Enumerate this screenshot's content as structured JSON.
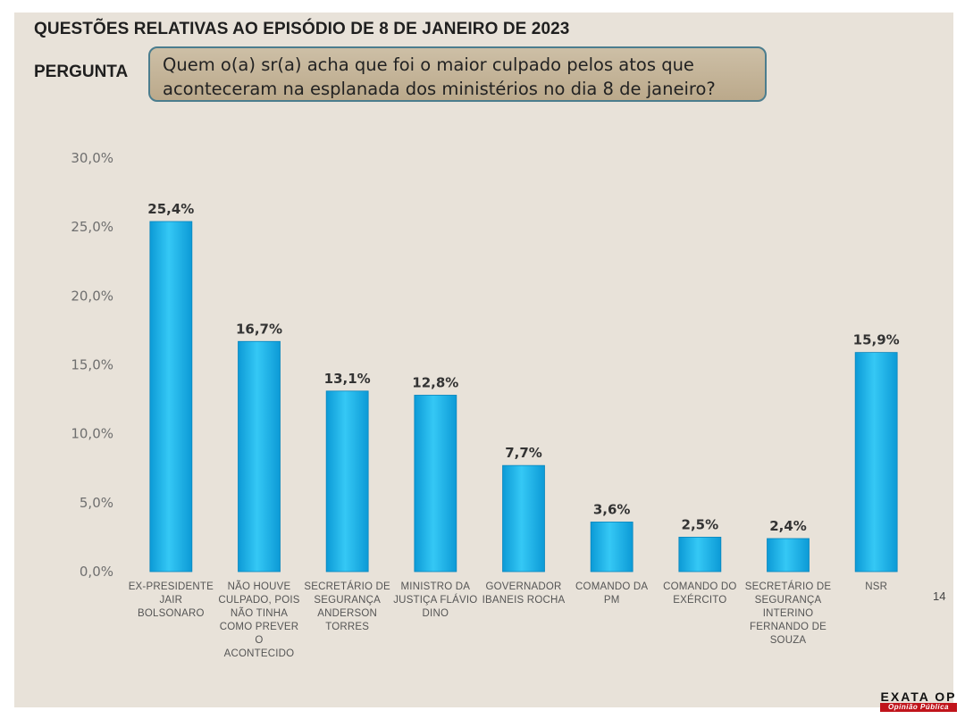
{
  "title": "QUESTÕES RELATIVAS AO EPISÓDIO DE 8 DE JANEIRO DE 2023",
  "question_label": "PERGUNTA",
  "question_lines": [
    "Quem o(a) sr(a) acha que foi o maior culpado pelos atos que",
    "aconteceram na esplanada dos ministérios no dia 8 de janeiro?"
  ],
  "page_number": "14",
  "logo": {
    "main": "EXATA OP",
    "sub": "Opinião Pública"
  },
  "colors": {
    "bar_top": "#35c8f5",
    "bar_bottom": "#0c9ad6",
    "background": "#e8e2d9"
  },
  "chart_data": {
    "type": "bar",
    "categories": [
      [
        "EX-PRESIDENTE",
        "JAIR",
        "BOLSONARO"
      ],
      [
        "NÃO HOUVE",
        "CULPADO, POIS",
        "NÃO TINHA",
        "COMO PREVER",
        "O",
        "ACONTECIDO"
      ],
      [
        "SECRETÁRIO DE",
        "SEGURANÇA",
        "ANDERSON",
        "TORRES"
      ],
      [
        "MINISTRO DA",
        "JUSTIÇA FLÁVIO",
        "DINO"
      ],
      [
        "GOVERNADOR",
        "IBANEIS ROCHA"
      ],
      [
        "COMANDO DA",
        "PM"
      ],
      [
        "COMANDO DO",
        "EXÉRCITO"
      ],
      [
        "SECRETÁRIO DE",
        "SEGURANÇA",
        "INTERINO",
        "FERNANDO DE",
        "SOUZA"
      ],
      [
        "NSR"
      ]
    ],
    "values": [
      25.4,
      16.7,
      13.1,
      12.8,
      7.7,
      3.6,
      2.5,
      2.4,
      15.9
    ],
    "value_labels": [
      "25,4%",
      "16,7%",
      "13,1%",
      "12,8%",
      "7,7%",
      "3,6%",
      "2,5%",
      "2,4%",
      "15,9%"
    ],
    "y_ticks": [
      "0,0%",
      "5,0%",
      "10,0%",
      "15,0%",
      "20,0%",
      "25,0%",
      "30,0%"
    ],
    "ylim": [
      0,
      30
    ],
    "grid": false,
    "legend": "none"
  }
}
